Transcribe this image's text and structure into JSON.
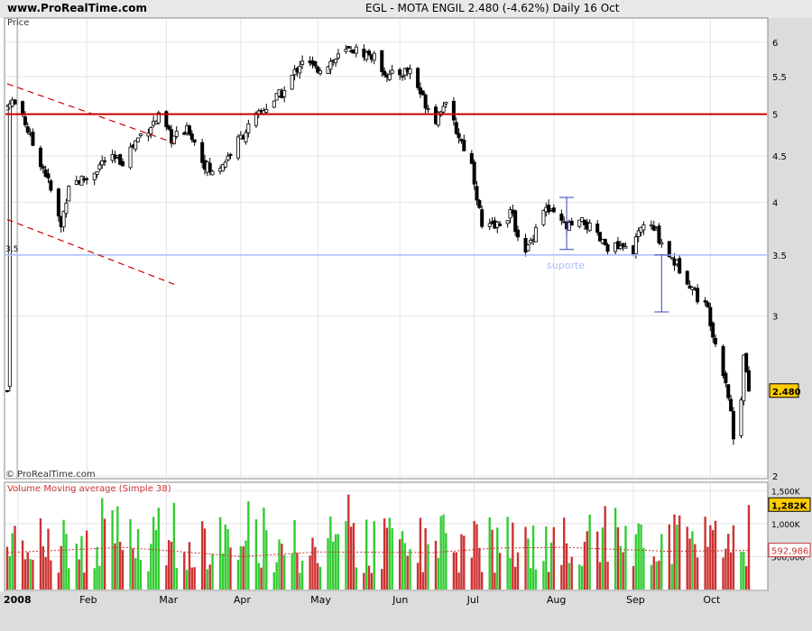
{
  "header": {
    "site": "www.ProRealTime.com",
    "title": "EGL - MOTA ENGIL    2.480 (-4.62%)    Daily  16 Oct"
  },
  "colors": {
    "up": "#33cc33",
    "down": "#cc3333",
    "resistance": "#cc0000",
    "support": "#aabbff",
    "trend": "#cc0000",
    "range": "#3344bb",
    "volume_ma": "#cc3333",
    "price_tag_bg": "#ffcc00"
  },
  "chart_data": [
    {
      "type": "candlestick",
      "title": "",
      "panel_label": "Price",
      "watermark": "© ProRealTime.com",
      "y_scale": "log",
      "ylim": [
        2,
        6.35
      ],
      "yticks": [
        "6",
        "5.5",
        "5",
        "4.5",
        "4",
        "3.5",
        "3",
        "2"
      ],
      "last_price_label": "2.480",
      "horizontal_lines": [
        {
          "value": 5.0,
          "role": "resistance",
          "label": "5"
        },
        {
          "value": 3.5,
          "role": "support",
          "label": "3.5"
        }
      ],
      "annotations": [
        {
          "text": "suporte",
          "x": "2008-08-06",
          "y": 3.38
        }
      ],
      "trendlines": [
        {
          "from": [
            "2008-01-01",
            5.4
          ],
          "to": [
            "2008-03-06",
            4.65
          ]
        },
        {
          "from": [
            "2008-01-01",
            3.83
          ],
          "to": [
            "2008-03-06",
            3.25
          ]
        }
      ],
      "range_markers": [
        {
          "x": "2008-08-06",
          "from": 3.55,
          "to": 4.05
        },
        {
          "x": "2008-09-12",
          "from": 3.03,
          "to": 3.5
        }
      ],
      "x_months": [
        "2008",
        "Feb",
        "Mar",
        "Apr",
        "May",
        "Jun",
        "Jul",
        "Aug",
        "Sep",
        "Oct"
      ],
      "ohlc_keypoints": [
        [
          "2008-01-02",
          5.2
        ],
        [
          "2008-01-07",
          5.0
        ],
        [
          "2008-01-10",
          4.7
        ],
        [
          "2008-01-16",
          4.3
        ],
        [
          "2008-01-22",
          3.75
        ],
        [
          "2008-01-25",
          4.2
        ],
        [
          "2008-02-01",
          4.25
        ],
        [
          "2008-02-08",
          4.45
        ],
        [
          "2008-02-15",
          4.45
        ],
        [
          "2008-02-22",
          4.75
        ],
        [
          "2008-02-29",
          4.95
        ],
        [
          "2008-03-05",
          4.7
        ],
        [
          "2008-03-12",
          4.8
        ],
        [
          "2008-03-17",
          4.45
        ],
        [
          "2008-03-21",
          4.3
        ],
        [
          "2008-03-26",
          4.45
        ],
        [
          "2008-04-03",
          4.8
        ],
        [
          "2008-04-11",
          5.1
        ],
        [
          "2008-04-18",
          5.3
        ],
        [
          "2008-04-25",
          5.75
        ],
        [
          "2008-04-30",
          5.6
        ],
        [
          "2008-05-08",
          5.75
        ],
        [
          "2008-05-14",
          5.9
        ],
        [
          "2008-05-22",
          5.8
        ],
        [
          "2008-05-29",
          5.5
        ],
        [
          "2008-06-06",
          5.6
        ],
        [
          "2008-06-11",
          5.2
        ],
        [
          "2008-06-16",
          4.95
        ],
        [
          "2008-06-19",
          5.15
        ],
        [
          "2008-06-24",
          4.8
        ],
        [
          "2008-06-30",
          4.4
        ],
        [
          "2008-07-04",
          3.75
        ],
        [
          "2008-07-09",
          3.75
        ],
        [
          "2008-07-15",
          3.9
        ],
        [
          "2008-07-21",
          3.5
        ],
        [
          "2008-07-28",
          3.95
        ],
        [
          "2008-08-06",
          3.75
        ],
        [
          "2008-08-13",
          3.8
        ],
        [
          "2008-08-20",
          3.6
        ],
        [
          "2008-08-27",
          3.55
        ],
        [
          "2008-09-01",
          3.55
        ],
        [
          "2008-09-05",
          3.8
        ],
        [
          "2008-09-10",
          3.7
        ],
        [
          "2008-09-15",
          3.5
        ],
        [
          "2008-09-22",
          3.3
        ],
        [
          "2008-09-26",
          3.15
        ],
        [
          "2008-09-30",
          3.05
        ],
        [
          "2008-10-03",
          2.8
        ],
        [
          "2008-10-07",
          2.55
        ],
        [
          "2008-10-09",
          2.35
        ],
        [
          "2008-10-10",
          2.2
        ],
        [
          "2008-10-13",
          2.45
        ],
        [
          "2008-10-14",
          2.75
        ],
        [
          "2008-10-15",
          2.6
        ],
        [
          "2008-10-16",
          2.48
        ]
      ]
    },
    {
      "type": "bar",
      "title": "Volume Moving average (Simple 38)",
      "y_scale": "linear",
      "ylim": [
        0,
        1600000
      ],
      "yticks": [
        "1,500K",
        "1,000K",
        "500,000"
      ],
      "last_volume_label": "1,282K",
      "last_ma_label": "592,986",
      "ma_keypoints": [
        [
          "2008-01-01",
          560000
        ],
        [
          "2008-02-15",
          640000
        ],
        [
          "2008-03-10",
          570000
        ],
        [
          "2008-04-01",
          500000
        ],
        [
          "2008-05-01",
          570000
        ],
        [
          "2008-06-15",
          560000
        ],
        [
          "2008-07-10",
          630000
        ],
        [
          "2008-08-05",
          640000
        ],
        [
          "2008-09-15",
          580000
        ],
        [
          "2008-10-16",
          593000
        ]
      ]
    }
  ]
}
